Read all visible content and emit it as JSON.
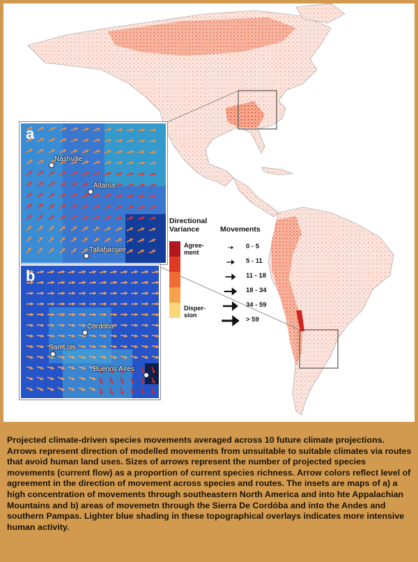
{
  "insets": {
    "a": {
      "letter": "a",
      "cities": [
        "Nashville",
        "Atlanta",
        "Tallahassee"
      ]
    },
    "b": {
      "letter": "b",
      "cities": [
        "Cordoba",
        "San Luis",
        "Buenos Aires"
      ]
    }
  },
  "legend": {
    "variance_title_line1": "Directional",
    "variance_title_line2": "Variance",
    "agreement_line1": "Agree-",
    "agreement_line2": "ment",
    "dispersion_line1": "Disper-",
    "dispersion_line2": "sion",
    "variance_colors": [
      "#b3161b",
      "#e03a25",
      "#f26a33",
      "#f7a04a",
      "#fbd77a"
    ],
    "movements_title": "Movements",
    "movement_classes": [
      "0 - 5",
      "5 - 11",
      "11 - 18",
      "18 - 34",
      "34 - 59",
      "> 59"
    ]
  },
  "caption": "Projected climate-driven species movements averaged across 10 future climate projections. Arrows represent direction of modelled movements from unsuitable to suitable climates via routes that avoid human land uses. Sizes of arrows represent the number of projected species movements (current flow) as a proportion of current species richness. Arrow colors reflect level of agreement in the direction of movement across species and routes. The insets are maps of a) a high concentration of movements through southeastern North America and into hte Appalachian Mountains and b) areas of movemetn through the Sierra De Cordóba and into the Andes and southern Pampas. Lighter blue shading in these topographical overlays indicates more intensive human activity."
}
